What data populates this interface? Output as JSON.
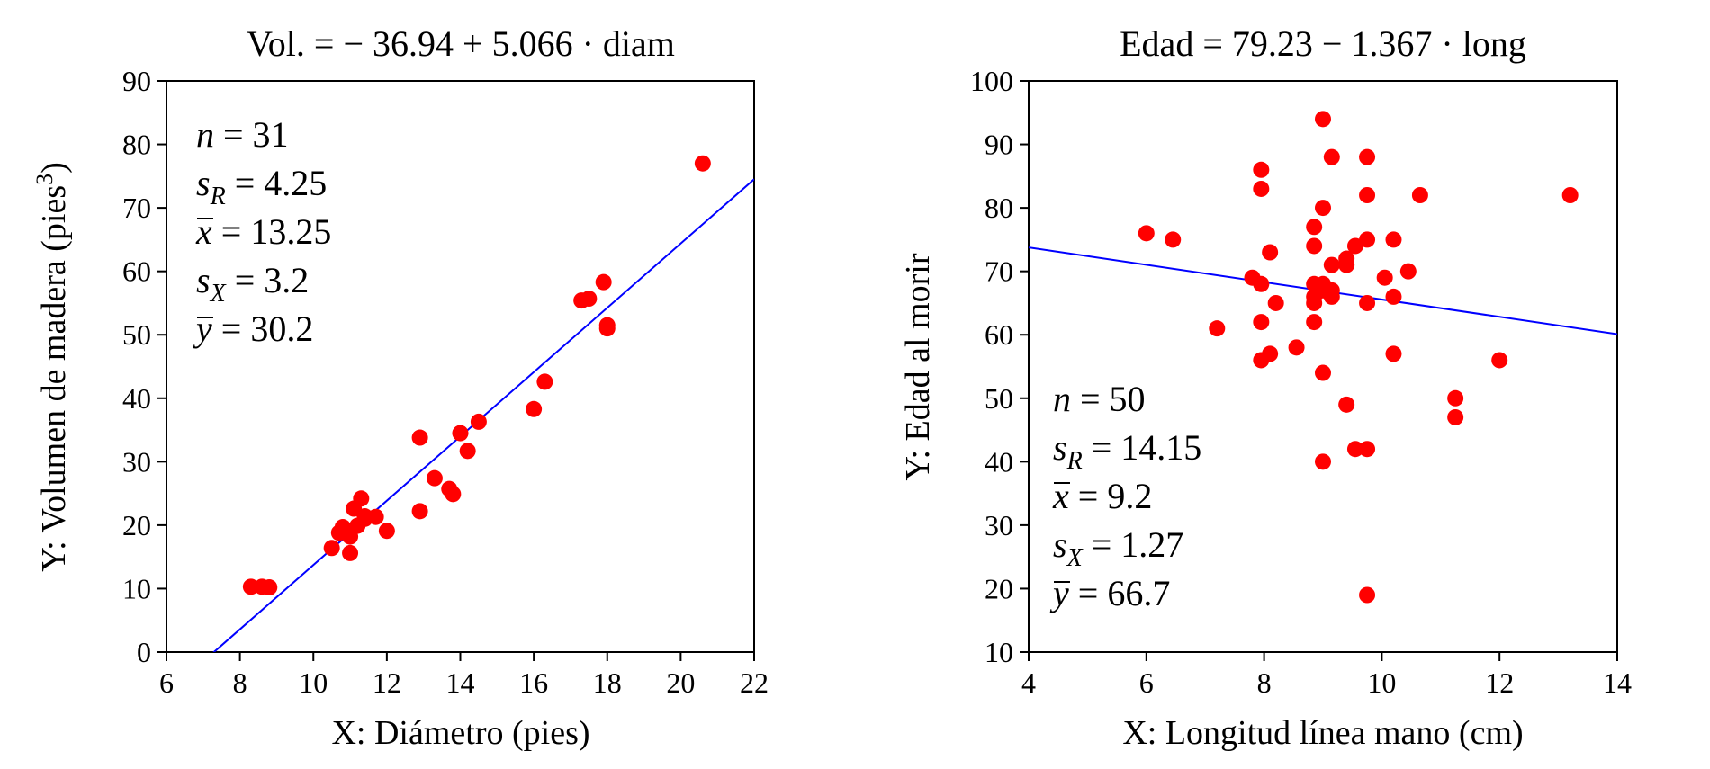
{
  "chart_data": [
    {
      "type": "scatter",
      "title": "Vol. = − 36.94 + 5.066 · diam",
      "xlabel": "X: Diámetro (pies)",
      "ylabel": "Y: Volumen de madera (pies",
      "ylabel_sup": "3",
      "ylabel_end": ")",
      "xlim": [
        6,
        22
      ],
      "ylim": [
        0,
        90
      ],
      "xticks": [
        6,
        8,
        10,
        12,
        14,
        16,
        18,
        20,
        22
      ],
      "yticks": [
        0,
        10,
        20,
        30,
        40,
        50,
        60,
        70,
        80,
        90
      ],
      "point_color": "#ff0000",
      "line_color": "#0000ff",
      "fit": {
        "intercept": -36.94,
        "slope": 5.066
      },
      "stats": {
        "n": {
          "sym": "n",
          "sub": "",
          "val": " = 31"
        },
        "sR": {
          "sym": "s",
          "sub": "R",
          "val": " = 4.25"
        },
        "xbar": {
          "sym": "x",
          "sub": "",
          "val": " = 13.25"
        },
        "sX": {
          "sym": "s",
          "sub": "X",
          "val": " = 3.2"
        },
        "ybar": {
          "sym": "y",
          "sub": "",
          "val": " = 30.2"
        }
      },
      "points": [
        [
          8.3,
          10.3
        ],
        [
          8.6,
          10.3
        ],
        [
          8.8,
          10.2
        ],
        [
          10.5,
          16.4
        ],
        [
          10.7,
          18.8
        ],
        [
          10.8,
          19.7
        ],
        [
          11.0,
          15.6
        ],
        [
          11.0,
          18.2
        ],
        [
          11.1,
          22.6
        ],
        [
          11.2,
          19.9
        ],
        [
          11.3,
          24.2
        ],
        [
          11.4,
          21.0
        ],
        [
          11.4,
          21.4
        ],
        [
          11.7,
          21.3
        ],
        [
          12.0,
          19.1
        ],
        [
          12.9,
          22.2
        ],
        [
          12.9,
          33.8
        ],
        [
          13.3,
          27.4
        ],
        [
          13.7,
          25.7
        ],
        [
          13.8,
          24.9
        ],
        [
          14.0,
          34.5
        ],
        [
          14.2,
          31.7
        ],
        [
          14.5,
          36.3
        ],
        [
          16.0,
          38.3
        ],
        [
          16.3,
          42.6
        ],
        [
          17.3,
          55.4
        ],
        [
          17.5,
          55.7
        ],
        [
          17.9,
          58.3
        ],
        [
          18.0,
          51.5
        ],
        [
          18.0,
          51.0
        ],
        [
          20.6,
          77.0
        ]
      ]
    },
    {
      "type": "scatter",
      "title": "Edad = 79.23 − 1.367 · long",
      "xlabel": "X: Longitud línea mano (cm)",
      "ylabel": "Y: Edad al morir",
      "xlim": [
        4,
        14
      ],
      "ylim": [
        10,
        100
      ],
      "xticks": [
        4,
        6,
        8,
        10,
        12,
        14
      ],
      "yticks": [
        10,
        20,
        30,
        40,
        50,
        60,
        70,
        80,
        90,
        100
      ],
      "point_color": "#ff0000",
      "line_color": "#0000ff",
      "fit": {
        "intercept": 79.23,
        "slope": -1.367
      },
      "stats": {
        "n": {
          "sym": "n",
          "sub": "",
          "val": " = 50"
        },
        "sR": {
          "sym": "s",
          "sub": "R",
          "val": " = 14.15"
        },
        "xbar": {
          "sym": "x",
          "sub": "",
          "val": " = 9.2"
        },
        "sX": {
          "sym": "s",
          "sub": "X",
          "val": " = 1.27"
        },
        "ybar": {
          "sym": "y",
          "sub": "",
          "val": " = 66.7"
        }
      },
      "points": [
        [
          6.0,
          76
        ],
        [
          6.45,
          75
        ],
        [
          7.2,
          61
        ],
        [
          7.8,
          69
        ],
        [
          7.95,
          86
        ],
        [
          7.95,
          83
        ],
        [
          7.95,
          68
        ],
        [
          7.95,
          62
        ],
        [
          7.95,
          56
        ],
        [
          8.1,
          73
        ],
        [
          8.1,
          57
        ],
        [
          8.2,
          65
        ],
        [
          8.55,
          58
        ],
        [
          8.85,
          77
        ],
        [
          8.85,
          74
        ],
        [
          8.85,
          68
        ],
        [
          8.85,
          66
        ],
        [
          8.85,
          65
        ],
        [
          8.85,
          62
        ],
        [
          9.0,
          94
        ],
        [
          9.0,
          80
        ],
        [
          9.0,
          68
        ],
        [
          9.0,
          67
        ],
        [
          9.0,
          54
        ],
        [
          9.0,
          40
        ],
        [
          9.15,
          88
        ],
        [
          9.15,
          71
        ],
        [
          9.15,
          67
        ],
        [
          9.15,
          66
        ],
        [
          9.4,
          72
        ],
        [
          9.4,
          71
        ],
        [
          9.4,
          49
        ],
        [
          9.55,
          74
        ],
        [
          9.55,
          42
        ],
        [
          9.75,
          88
        ],
        [
          9.75,
          82
        ],
        [
          9.75,
          75
        ],
        [
          9.75,
          65
        ],
        [
          9.75,
          42
        ],
        [
          9.75,
          19
        ],
        [
          10.05,
          69
        ],
        [
          10.2,
          75
        ],
        [
          10.2,
          66
        ],
        [
          10.2,
          57
        ],
        [
          10.45,
          70
        ],
        [
          10.65,
          82
        ],
        [
          11.25,
          50
        ],
        [
          11.25,
          47
        ],
        [
          12.0,
          56
        ],
        [
          13.2,
          82
        ]
      ]
    }
  ]
}
